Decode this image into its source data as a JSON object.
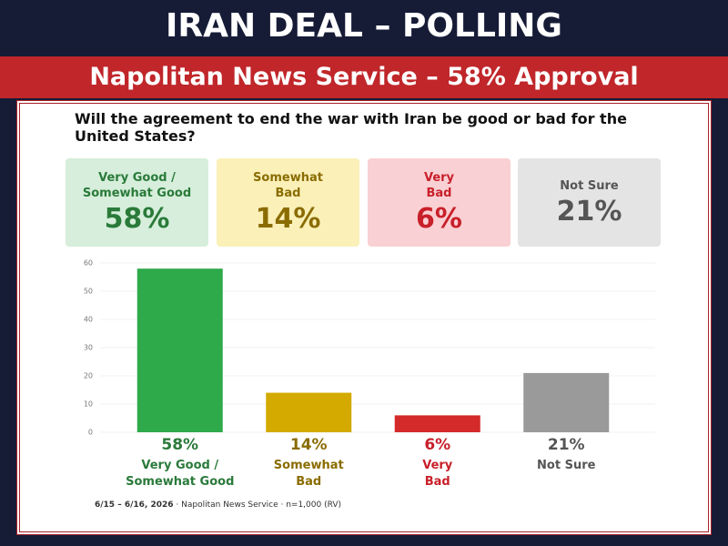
{
  "header": {
    "title": "IRAN DEAL – POLLING",
    "banner": "Napolitan News Service – 58% Approval"
  },
  "chart_data": {
    "type": "bar",
    "title": "Will the agreement to end the war with Iran be good or bad for the United States?",
    "categories": [
      "Very Good /\nSomewhat Good",
      "Somewhat\nBad",
      "Very\nBad",
      "Not Sure"
    ],
    "values": [
      58,
      14,
      6,
      21
    ],
    "value_labels": [
      "58%",
      "14%",
      "6%",
      "21%"
    ],
    "colors": [
      "#2eaa4a",
      "#d4aa00",
      "#d42a2a",
      "#9a9a9a"
    ],
    "text_colors": [
      "#2a7a3a",
      "#8a6c00",
      "#c8202a",
      "#555555"
    ],
    "card_colors": [
      "#d6eedb",
      "#faf0b8",
      "#f9d0d3",
      "#e4e4e4"
    ],
    "ylim": [
      0,
      60
    ],
    "yticks": [
      0,
      10,
      20,
      30,
      40,
      50,
      60
    ],
    "grid": true
  },
  "footer": {
    "date": "6/15 – 6/16, 2026",
    "source": "· Napolitan News Service · n=1,000 (RV)"
  }
}
